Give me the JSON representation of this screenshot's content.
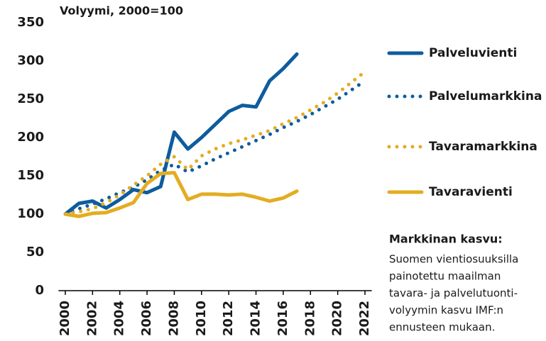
{
  "chart_data": {
    "type": "line",
    "subtitle": "Volyymi, 2000=100",
    "x": [
      2000,
      2001,
      2002,
      2003,
      2004,
      2005,
      2006,
      2007,
      2008,
      2009,
      2010,
      2011,
      2012,
      2013,
      2014,
      2015,
      2016,
      2017,
      2018,
      2019,
      2020,
      2021,
      2022
    ],
    "series": [
      {
        "name": "Palveluvienti",
        "color": "#0d5c9e",
        "style": "solid",
        "values": [
          100,
          114,
          117,
          108,
          119,
          132,
          128,
          136,
          207,
          185,
          200,
          217,
          234,
          242,
          240,
          274,
          290,
          309,
          null,
          null,
          null,
          null,
          null
        ]
      },
      {
        "name": "Palvelumarkkina",
        "color": "#0d5c9e",
        "style": "dotted",
        "values": [
          100,
          107,
          113,
          120,
          128,
          135,
          145,
          157,
          165,
          155,
          163,
          172,
          180,
          188,
          196,
          204,
          213,
          221,
          230,
          240,
          250,
          262,
          274
        ]
      },
      {
        "name": "Tavaramarkkina",
        "color": "#e3ad22",
        "style": "dotted",
        "values": [
          100,
          103,
          107,
          115,
          125,
          138,
          150,
          165,
          175,
          158,
          176,
          185,
          192,
          197,
          203,
          209,
          218,
          226,
          236,
          246,
          258,
          272,
          286
        ]
      },
      {
        "name": "Tavaravienti",
        "color": "#e3ad22",
        "style": "solid",
        "values": [
          100,
          97,
          101,
          102,
          108,
          115,
          140,
          153,
          154,
          119,
          126,
          126,
          125,
          126,
          122,
          117,
          121,
          130,
          null,
          null,
          null,
          null,
          null
        ]
      }
    ],
    "xlim": [
      1999.5,
      2022.5
    ],
    "xticks": [
      2000,
      2002,
      2004,
      2006,
      2008,
      2010,
      2012,
      2014,
      2016,
      2018,
      2020,
      2022
    ],
    "ylim": [
      0,
      350
    ],
    "yticks": [
      0,
      50,
      100,
      150,
      200,
      250,
      300,
      350
    ],
    "annotation": {
      "title": "Markkinan kasvu:",
      "lines": [
        "Suomen vientiosuuksilla",
        "painotettu maailman",
        "tavara- ja palvelutuonti-",
        "volyymin kasvu IMF:n",
        "ennusteen mukaan."
      ]
    }
  }
}
